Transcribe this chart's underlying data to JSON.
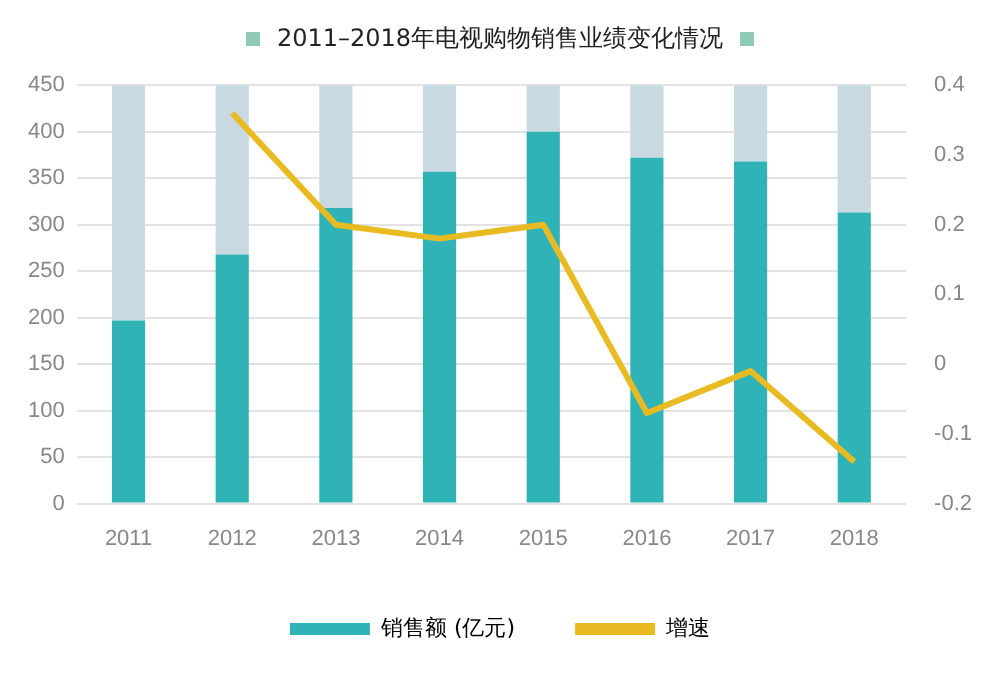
{
  "chart_data": {
    "type": "bar",
    "title": "2011–2018年电视购物销售业绩变化情况",
    "categories": [
      "2011",
      "2012",
      "2013",
      "2014",
      "2015",
      "2016",
      "2017",
      "2018"
    ],
    "series": [
      {
        "name": "销售额 (亿元)",
        "color": "#2fb3b7",
        "values": [
          197,
          268,
          318,
          357,
          400,
          372,
          368,
          313
        ]
      },
      {
        "color": "#c9d9e1",
        "values": [
          253,
          182,
          132,
          93,
          50,
          78,
          82,
          137
        ]
      },
      {
        "type": "line",
        "name": "增速",
        "color": "#e8bb22",
        "axis": "y2",
        "values": [
          null,
          0.36,
          0.2,
          0.18,
          0.2,
          -0.07,
          -0.01,
          -0.14
        ]
      }
    ],
    "ylim": [
      0,
      450
    ],
    "yticks": [
      0,
      50,
      100,
      150,
      200,
      250,
      300,
      350,
      400,
      450
    ],
    "y2lim": [
      -0.2,
      0.4
    ],
    "y2ticks": [
      -0.2,
      -0.1,
      0,
      0.1,
      0.2,
      0.3,
      0.4
    ],
    "stacked": true,
    "grid": "y",
    "legend": "bottom",
    "marker": "none",
    "line_style": "solid"
  }
}
